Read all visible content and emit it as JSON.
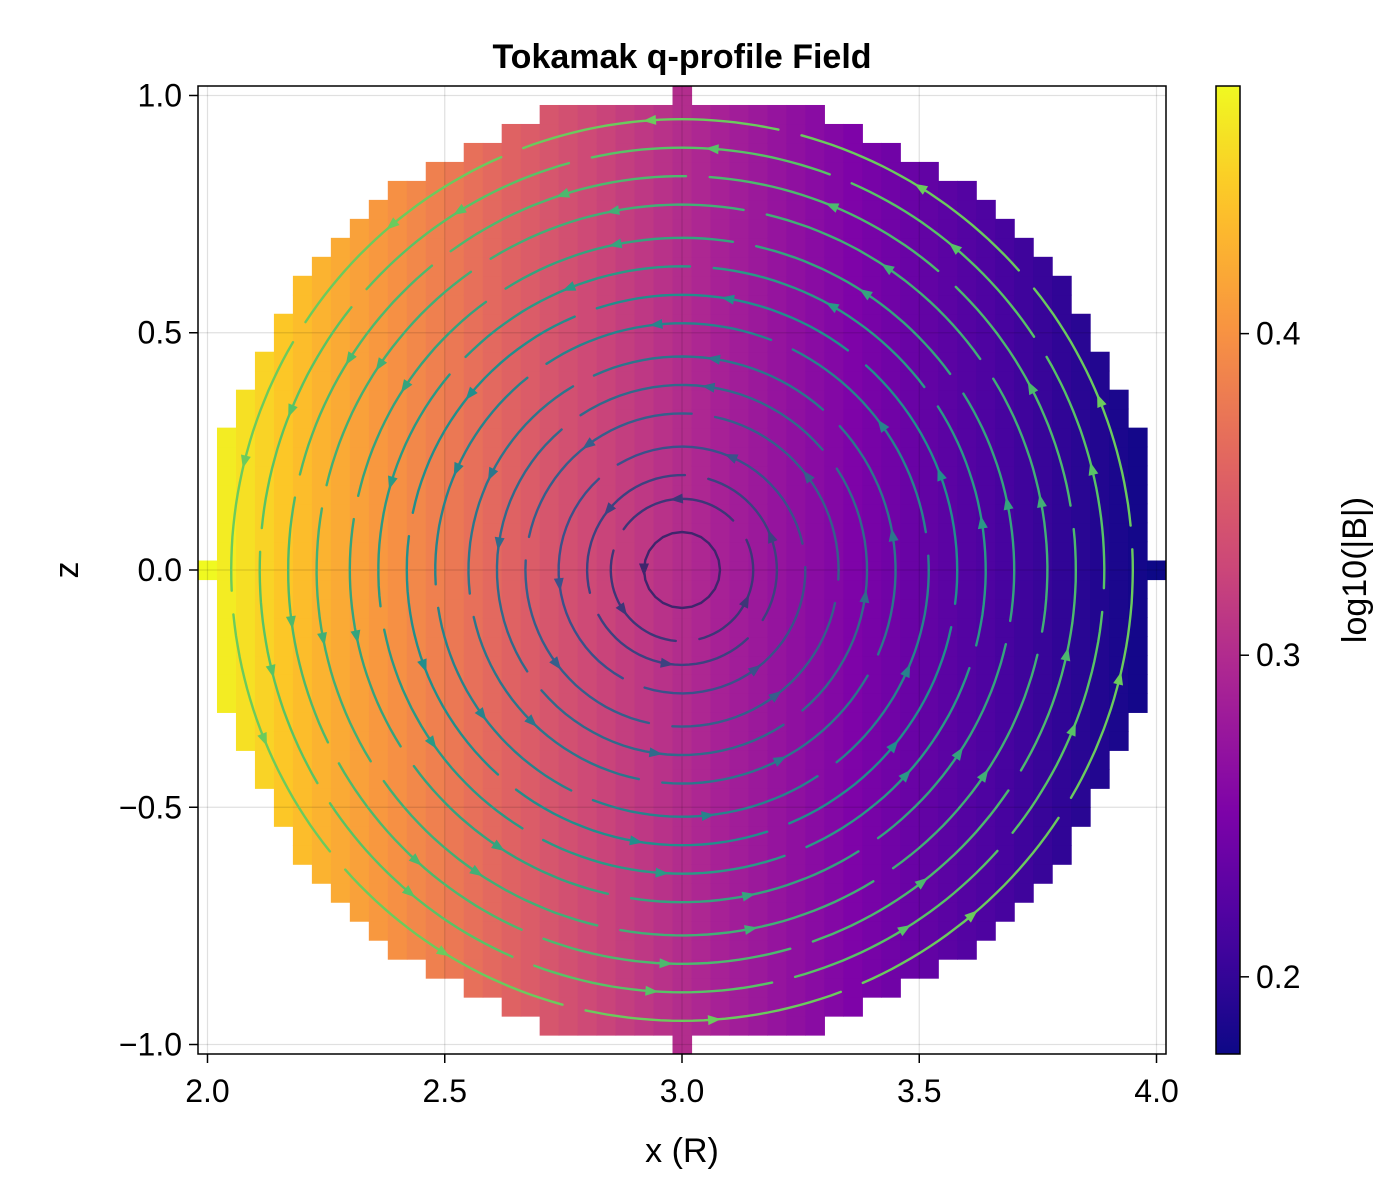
{
  "chart_data": {
    "type": "heatmap",
    "title": "Tokamak q-profile Field",
    "xlabel": "x (R)",
    "ylabel": "z",
    "xlim": [
      1.98,
      4.02
    ],
    "ylim": [
      -1.02,
      1.02
    ],
    "x_ticks": [
      2.0,
      2.5,
      3.0,
      3.5,
      4.0
    ],
    "x_tick_labels": [
      "2.0",
      "2.5",
      "3.0",
      "3.5",
      "4.0"
    ],
    "y_ticks": [
      1.0,
      0.5,
      0.0,
      -0.5,
      -1.0
    ],
    "y_tick_labels": [
      "1.0",
      "0.5",
      "0.0",
      "−0.5",
      "−1.0"
    ],
    "grid": true,
    "heatmap": {
      "description_value": "log10(|B|) with |B| proportional to 1/R",
      "colormap": "plasma",
      "grid_step": 0.04,
      "center": [
        3.0,
        0.0
      ],
      "radius": 1.0,
      "clim": [
        0.176,
        0.477
      ]
    },
    "streamlines": {
      "center": [
        3.0,
        0.0
      ],
      "direction": "counterclockwise",
      "colormap": "viridis",
      "radii": [
        0.08,
        0.15,
        0.2,
        0.26,
        0.33,
        0.39,
        0.45,
        0.52,
        0.58,
        0.64,
        0.7,
        0.77,
        0.83,
        0.89,
        0.95
      ]
    },
    "colorbar": {
      "label": "log10(|B|)",
      "range": [
        0.176,
        0.477
      ],
      "ticks": [
        0.2,
        0.3,
        0.4
      ],
      "tick_labels": [
        "0.2",
        "0.3",
        "0.4"
      ]
    }
  }
}
